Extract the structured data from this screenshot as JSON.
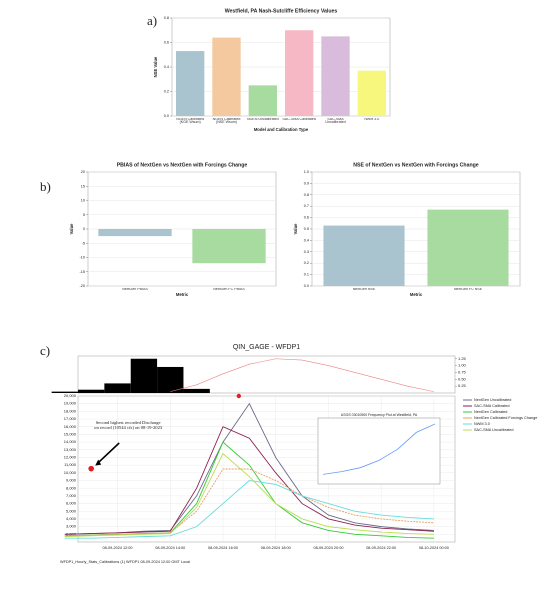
{
  "labels": {
    "a": "a)",
    "b": "b)",
    "c": "c)"
  },
  "chart_data": [
    {
      "type": "bar",
      "title": "Westfield, PA Nash-Sutcliffe Efficiency Values",
      "xlabel": "Model and Calibration Type",
      "ylabel": "NSE Value",
      "categories": [
        "NGEN Calibrated (KGE Wsum)",
        "NGEN Calibrated (NSE Wsum)",
        "NGEN Uncalibrated",
        "SAC-SMA Calibrated",
        "SAC-SMA Uncalibrated",
        "NWM 3.0"
      ],
      "values": [
        0.53,
        0.64,
        0.25,
        0.7,
        0.65,
        0.37
      ],
      "colors": [
        "#a9c4cf",
        "#f5c99f",
        "#a8dba0",
        "#f5b8c4",
        "#d9bcdc",
        "#f7f77e"
      ],
      "ylim": [
        0,
        0.8
      ],
      "yticks": [
        {
          "value": 0,
          "label": "0.0"
        },
        0.2,
        0.4,
        0.6,
        0.8
      ],
      "grid": true
    },
    {
      "type": "bar",
      "title": "PBIAS of NextGen vs NextGen with Forcings Change",
      "xlabel": "Metric",
      "ylabel": "Value",
      "categories": [
        "NextGen PBIAS",
        "NextGen FC PBIAS"
      ],
      "values": [
        -2.5,
        -12
      ],
      "colors": [
        "#a9c4cf",
        "#a8dba0"
      ],
      "ylim": [
        -20,
        20
      ],
      "yticks": [
        -20,
        -15,
        -10,
        -5,
        0,
        5,
        10,
        15,
        20
      ],
      "grid": true
    },
    {
      "type": "bar",
      "title": "NSE of NextGen vs NextGen with Forcings Change",
      "xlabel": "Metric",
      "ylabel": "Value",
      "categories": [
        "NextGen NSE",
        "NextGen FC NSE"
      ],
      "values": [
        0.53,
        0.67
      ],
      "colors": [
        "#a9c4cf",
        "#a8dba0"
      ],
      "ylim": [
        0,
        1
      ],
      "yticks": [
        {
          "value": 0,
          "label": "0.0"
        },
        0.1,
        0.2,
        0.3,
        0.4,
        0.5,
        0.6,
        0.7,
        0.8,
        0.9,
        {
          "value": 1,
          "label": "1.0"
        }
      ],
      "grid": true
    },
    {
      "type": "line",
      "title": "QIN_GAGE - WFDP1",
      "x": [
        0,
        1,
        2,
        3,
        4,
        5,
        6,
        7,
        8,
        9,
        10,
        11,
        12,
        13,
        14
      ],
      "xlim": [
        0.5,
        14.8
      ],
      "xticks": [
        {
          "value": 2,
          "label": "08-09-2024 12:00"
        },
        {
          "value": 4,
          "label": "08-09-2024 14:00"
        },
        {
          "value": 6,
          "label": "08-09-2024 16:00"
        },
        {
          "value": 8,
          "label": "08-09-2024 18:00"
        },
        {
          "value": 10,
          "label": "08-09-2024 20:00"
        },
        {
          "value": 12,
          "label": "08-09-2024 22:00"
        },
        {
          "value": 14,
          "label": "08-10-2024 00:00"
        }
      ],
      "ylim": [
        1000,
        20000
      ],
      "yticks": [
        {
          "value": 2000,
          "label": "2,000"
        },
        {
          "value": 3000,
          "label": "3,000"
        },
        {
          "value": 4000,
          "label": "4,000"
        },
        {
          "value": 5000,
          "label": "5,000"
        },
        {
          "value": 6000,
          "label": "6,000"
        },
        {
          "value": 7000,
          "label": "7,000"
        },
        {
          "value": 8000,
          "label": "8,000"
        },
        {
          "value": 9000,
          "label": "9,000"
        },
        {
          "value": 10000,
          "label": "10,000"
        },
        {
          "value": 11000,
          "label": "11,000"
        },
        {
          "value": 12000,
          "label": "12,000"
        },
        {
          "value": 13000,
          "label": "13,000"
        },
        {
          "value": 14000,
          "label": "14,000"
        },
        {
          "value": 15000,
          "label": "15,000"
        },
        {
          "value": 16000,
          "label": "16,000"
        },
        {
          "value": 17000,
          "label": "17,000"
        },
        {
          "value": 18000,
          "label": "18,000"
        },
        {
          "value": 19000,
          "label": "19,000"
        },
        {
          "value": 20000,
          "label": "20,000"
        }
      ],
      "grid": true,
      "series": [
        {
          "name": "NextGen Uncalibrated",
          "color": "#6b6b8a",
          "values": [
            2000,
            2100,
            2200,
            2400,
            2500,
            7000,
            14000,
            19000,
            12000,
            7000,
            4500,
            3500,
            3000,
            2700,
            2500
          ]
        },
        {
          "name": "SAC-SMA Calibrated",
          "color": "#8b2252",
          "values": [
            2000,
            2100,
            2200,
            2300,
            2400,
            8000,
            16000,
            14500,
            10000,
            6000,
            4000,
            3200,
            2800,
            2600,
            2400
          ]
        },
        {
          "name": "NextGen Calibrated",
          "color": "#33cc33",
          "values": [
            1800,
            1900,
            2000,
            2100,
            2200,
            6000,
            14000,
            11000,
            6000,
            3500,
            2500,
            2000,
            1800,
            1600,
            1500
          ]
        },
        {
          "name": "NextGen Calibrated Forcings Change",
          "color": "#e8a060",
          "values": [
            1800,
            1900,
            2000,
            2100,
            2200,
            5000,
            10500,
            10500,
            9000,
            7000,
            5500,
            4500,
            4000,
            3700,
            3500
          ]
        },
        {
          "name": "NWM 3.0",
          "color": "#66dddd",
          "values": [
            1500,
            1500,
            1600,
            1700,
            1800,
            3000,
            6000,
            9000,
            8500,
            7000,
            6000,
            5000,
            4500,
            4200,
            4000
          ]
        },
        {
          "name": "SAC-SMA Uncalibrated",
          "color": "#bbdd55",
          "values": [
            1700,
            1800,
            1900,
            2000,
            2100,
            5500,
            12500,
            9500,
            6000,
            4000,
            3000,
            2600,
            2300,
            2100,
            2000
          ]
        }
      ],
      "precip": {
        "color": "#000000",
        "values": [
          0.05,
          0.12,
          0.35,
          1.25,
          0.95,
          0.15,
          0,
          0,
          0,
          0,
          0,
          0,
          0,
          0,
          0
        ],
        "curve_color": "#f08080",
        "curve": [
          null,
          null,
          null,
          null,
          0.05,
          0.3,
          0.7,
          1.05,
          1.25,
          1.2,
          1.0,
          0.75,
          0.5,
          0.25,
          0.05
        ],
        "ylim": [
          0,
          1.35
        ],
        "yticks": [
          {
            "value": 0.25,
            "label": "0.25"
          },
          {
            "value": 0.5,
            "label": "0.50"
          },
          {
            "value": 0.75,
            "label": "0.75"
          },
          {
            "value": 1,
            "label": "1.00"
          },
          {
            "value": 1.25,
            "label": "1.25"
          }
        ]
      },
      "highlight": {
        "x": 1,
        "y": 10544,
        "text": "Second highest recorded Discharge on record (10544 cfs) on 08-19-2023"
      },
      "peak_marker": {
        "x": 6.6,
        "y": 20000
      },
      "inset": {
        "title": "USGS 03010500 Frequency Plot at Westfield, PA",
        "color": "#6699ff",
        "values": [
          1,
          1.5,
          2.2,
          3.5,
          5.5,
          8.5,
          10
        ]
      },
      "footer": "WFDP1_Hourly_Stats_Calibrations (1) WFDP1 08-09-2024 12:00 GMT Local"
    }
  ]
}
